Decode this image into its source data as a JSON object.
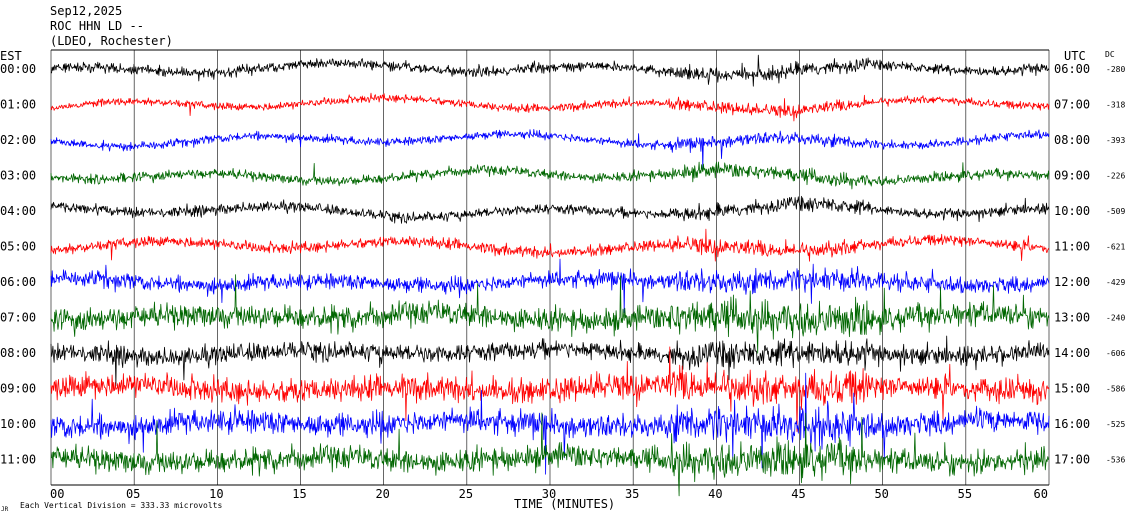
{
  "header": {
    "date": "Sep12,2025",
    "station": "ROC HHN LD --",
    "network": "(LDEO, Rochester)"
  },
  "left_axis_title": "EST",
  "right_axis_title": "UTC",
  "dc_title": "DC",
  "bottom": {
    "xlabel": "TIME (MINUTES)",
    "scale_note": "Each Vertical Division =  333.33 microvolts",
    "corner_mark": "JR"
  },
  "colors": {
    "black": "#000000",
    "red": "#ff0000",
    "blue": "#0000ff",
    "green": "#006600",
    "grid": "#000000"
  },
  "chart_data": {
    "type": "line",
    "title": "",
    "xlabel": "TIME (MINUTES)",
    "ylabel": "",
    "xlim": [
      0,
      60
    ],
    "x_ticks": [
      "00",
      "05",
      "10",
      "15",
      "20",
      "25",
      "30",
      "35",
      "40",
      "45",
      "50",
      "55",
      "60"
    ],
    "grid": "vertical every 5 minutes",
    "rows": [
      {
        "est": "00:00",
        "utc": "06:00",
        "dc": "-280",
        "color": "black",
        "amplitude": 1.0
      },
      {
        "est": "01:00",
        "utc": "07:00",
        "dc": "-318",
        "color": "red",
        "amplitude": 0.8
      },
      {
        "est": "02:00",
        "utc": "08:00",
        "dc": "-393",
        "color": "blue",
        "amplitude": 0.85
      },
      {
        "est": "03:00",
        "utc": "09:00",
        "dc": "-226",
        "color": "green",
        "amplitude": 1.0
      },
      {
        "est": "04:00",
        "utc": "10:00",
        "dc": "-509",
        "color": "black",
        "amplitude": 1.0
      },
      {
        "est": "05:00",
        "utc": "11:00",
        "dc": "-621",
        "color": "red",
        "amplitude": 1.1
      },
      {
        "est": "06:00",
        "utc": "12:00",
        "dc": "-429",
        "color": "blue",
        "amplitude": 1.6
      },
      {
        "est": "07:00",
        "utc": "13:00",
        "dc": "-240",
        "color": "green",
        "amplitude": 2.4
      },
      {
        "est": "08:00",
        "utc": "14:00",
        "dc": "-606",
        "color": "black",
        "amplitude": 1.8
      },
      {
        "est": "09:00",
        "utc": "15:00",
        "dc": "-586",
        "color": "red",
        "amplitude": 2.4
      },
      {
        "est": "10:00",
        "utc": "16:00",
        "dc": "-525",
        "color": "blue",
        "amplitude": 2.4
      },
      {
        "est": "11:00",
        "utc": "17:00",
        "dc": "-536",
        "color": "green",
        "amplitude": 2.4
      }
    ]
  }
}
